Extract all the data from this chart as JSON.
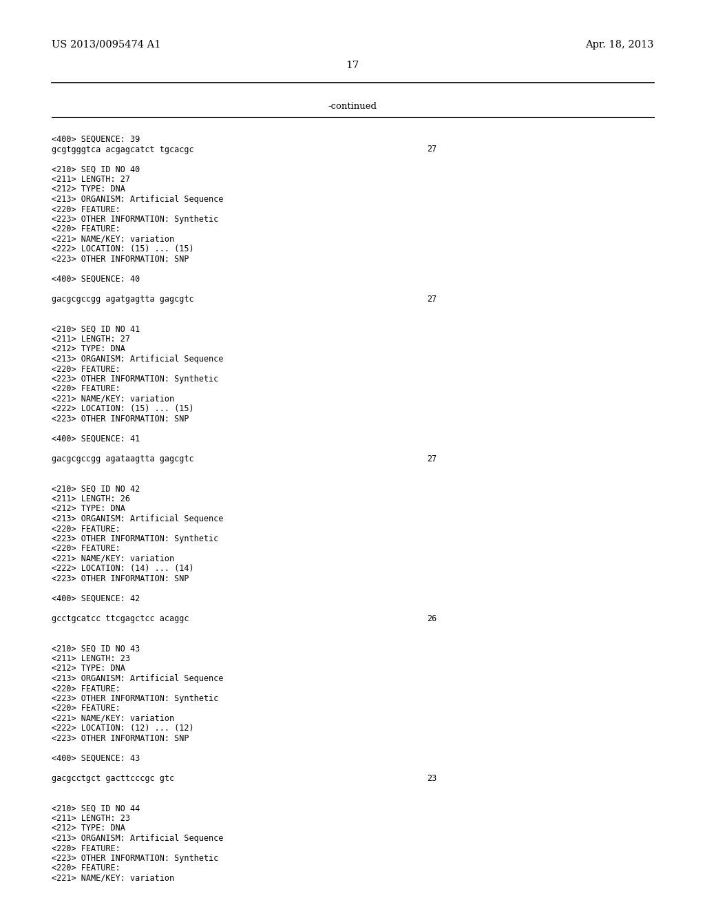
{
  "background_color": "#ffffff",
  "top_left_text": "US 2013/0095474 A1",
  "top_right_text": "Apr. 18, 2013",
  "page_number": "17",
  "continued_text": "-continued",
  "header_font_size": 10.5,
  "mono_font_size": 8.5,
  "page_num_font_size": 11,
  "content_lines": [
    [
      "<400> SEQUENCE: 39",
      null
    ],
    [
      "gcgtgggtca acgagcatct tgcacgc",
      "27"
    ],
    [
      null,
      null
    ],
    [
      "<210> SEQ ID NO 40",
      null
    ],
    [
      "<211> LENGTH: 27",
      null
    ],
    [
      "<212> TYPE: DNA",
      null
    ],
    [
      "<213> ORGANISM: Artificial Sequence",
      null
    ],
    [
      "<220> FEATURE:",
      null
    ],
    [
      "<223> OTHER INFORMATION: Synthetic",
      null
    ],
    [
      "<220> FEATURE:",
      null
    ],
    [
      "<221> NAME/KEY: variation",
      null
    ],
    [
      "<222> LOCATION: (15) ... (15)",
      null
    ],
    [
      "<223> OTHER INFORMATION: SNP",
      null
    ],
    [
      null,
      null
    ],
    [
      "<400> SEQUENCE: 40",
      null
    ],
    [
      null,
      null
    ],
    [
      "gacgcgccgg agatgagtta gagcgtc",
      "27"
    ],
    [
      null,
      null
    ],
    [
      null,
      null
    ],
    [
      "<210> SEQ ID NO 41",
      null
    ],
    [
      "<211> LENGTH: 27",
      null
    ],
    [
      "<212> TYPE: DNA",
      null
    ],
    [
      "<213> ORGANISM: Artificial Sequence",
      null
    ],
    [
      "<220> FEATURE:",
      null
    ],
    [
      "<223> OTHER INFORMATION: Synthetic",
      null
    ],
    [
      "<220> FEATURE:",
      null
    ],
    [
      "<221> NAME/KEY: variation",
      null
    ],
    [
      "<222> LOCATION: (15) ... (15)",
      null
    ],
    [
      "<223> OTHER INFORMATION: SNP",
      null
    ],
    [
      null,
      null
    ],
    [
      "<400> SEQUENCE: 41",
      null
    ],
    [
      null,
      null
    ],
    [
      "gacgcgccgg agataagtta gagcgtc",
      "27"
    ],
    [
      null,
      null
    ],
    [
      null,
      null
    ],
    [
      "<210> SEQ ID NO 42",
      null
    ],
    [
      "<211> LENGTH: 26",
      null
    ],
    [
      "<212> TYPE: DNA",
      null
    ],
    [
      "<213> ORGANISM: Artificial Sequence",
      null
    ],
    [
      "<220> FEATURE:",
      null
    ],
    [
      "<223> OTHER INFORMATION: Synthetic",
      null
    ],
    [
      "<220> FEATURE:",
      null
    ],
    [
      "<221> NAME/KEY: variation",
      null
    ],
    [
      "<222> LOCATION: (14) ... (14)",
      null
    ],
    [
      "<223> OTHER INFORMATION: SNP",
      null
    ],
    [
      null,
      null
    ],
    [
      "<400> SEQUENCE: 42",
      null
    ],
    [
      null,
      null
    ],
    [
      "gcctgcatcc ttcgagctcc acaggc",
      "26"
    ],
    [
      null,
      null
    ],
    [
      null,
      null
    ],
    [
      "<210> SEQ ID NO 43",
      null
    ],
    [
      "<211> LENGTH: 23",
      null
    ],
    [
      "<212> TYPE: DNA",
      null
    ],
    [
      "<213> ORGANISM: Artificial Sequence",
      null
    ],
    [
      "<220> FEATURE:",
      null
    ],
    [
      "<223> OTHER INFORMATION: Synthetic",
      null
    ],
    [
      "<220> FEATURE:",
      null
    ],
    [
      "<221> NAME/KEY: variation",
      null
    ],
    [
      "<222> LOCATION: (12) ... (12)",
      null
    ],
    [
      "<223> OTHER INFORMATION: SNP",
      null
    ],
    [
      null,
      null
    ],
    [
      "<400> SEQUENCE: 43",
      null
    ],
    [
      null,
      null
    ],
    [
      "gacgcctgct gacttcccgc gtc",
      "23"
    ],
    [
      null,
      null
    ],
    [
      null,
      null
    ],
    [
      "<210> SEQ ID NO 44",
      null
    ],
    [
      "<211> LENGTH: 23",
      null
    ],
    [
      "<212> TYPE: DNA",
      null
    ],
    [
      "<213> ORGANISM: Artificial Sequence",
      null
    ],
    [
      "<220> FEATURE:",
      null
    ],
    [
      "<223> OTHER INFORMATION: Synthetic",
      null
    ],
    [
      "<220> FEATURE:",
      null
    ],
    [
      "<221> NAME/KEY: variation",
      null
    ]
  ]
}
